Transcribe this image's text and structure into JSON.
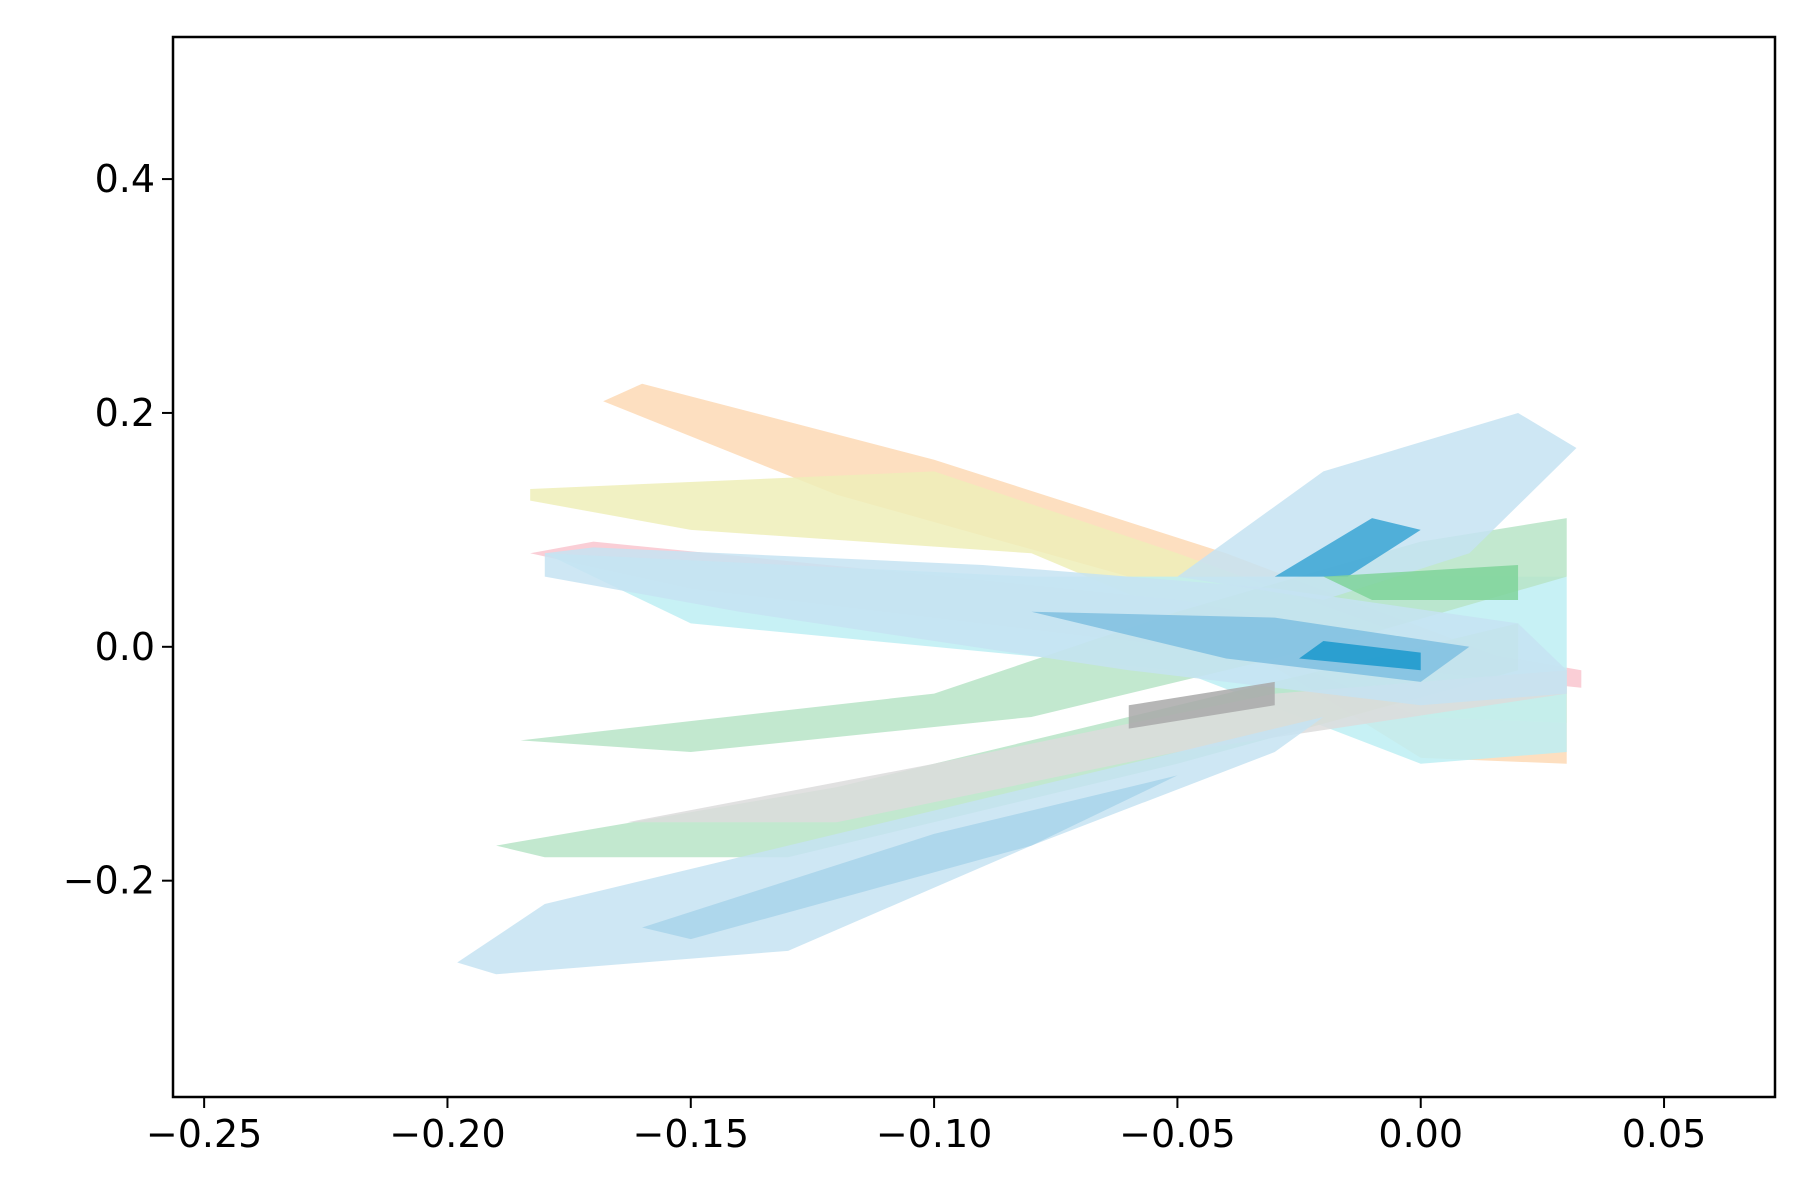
{
  "chart_data": {
    "type": "contour",
    "xlim": [
      -0.2564,
      0.0728
    ],
    "ylim": [
      -0.385,
      0.5215
    ],
    "xticks": [
      {
        "value": -0.25,
        "label": "−0.25"
      },
      {
        "value": -0.2,
        "label": "−0.20"
      },
      {
        "value": -0.15,
        "label": "−0.15"
      },
      {
        "value": -0.1,
        "label": "−0.10"
      },
      {
        "value": -0.05,
        "label": "−0.05"
      },
      {
        "value": 0,
        "label": "0.00"
      },
      {
        "value": 0.05,
        "label": "0.05"
      }
    ],
    "yticks": [
      {
        "value": -0.2,
        "label": "−0.2"
      },
      {
        "value": 0,
        "label": "0.0"
      },
      0.2,
      0.4
    ],
    "series": [
      {
        "color": "#fdd9b5",
        "x": [
          -0.168,
          -0.16,
          -0.1,
          -0.04,
          0.03,
          0.03,
          0.0,
          -0.06,
          -0.12
        ],
        "y": [
          0.21,
          0.225,
          0.16,
          0.08,
          -0.03,
          -0.1,
          -0.095,
          0.06,
          0.13
        ]
      },
      {
        "color": "#eeeeb8",
        "x": [
          -0.183,
          -0.1,
          -0.05,
          0.03,
          0.03,
          0.0,
          -0.08,
          -0.15,
          -0.183
        ],
        "y": [
          0.135,
          0.15,
          0.08,
          -0.04,
          -0.065,
          -0.06,
          0.08,
          0.1,
          0.125
        ]
      },
      {
        "color": "#f9c6cf",
        "x": [
          -0.183,
          -0.17,
          -0.05,
          0.033,
          0.033,
          -0.05,
          -0.15
        ],
        "y": [
          0.08,
          0.09,
          0.04,
          -0.02,
          -0.035,
          0.0,
          0.05
        ]
      },
      {
        "color": "#bdeef3",
        "x": [
          -0.18,
          -0.08,
          0.03,
          0.03,
          0.0,
          -0.05,
          -0.15
        ],
        "y": [
          0.08,
          0.06,
          0.06,
          -0.09,
          -0.1,
          -0.02,
          0.02
        ]
      },
      {
        "color": "#b7e4c7",
        "x": [
          -0.185,
          -0.1,
          -0.05,
          0.0,
          0.03,
          0.03,
          -0.02,
          -0.08,
          -0.15
        ],
        "y": [
          -0.08,
          -0.04,
          0.03,
          0.09,
          0.11,
          0.06,
          0.0,
          -0.06,
          -0.09
        ]
      },
      {
        "color": "#b7e4c7",
        "x": [
          -0.19,
          -0.12,
          -0.04,
          0.02,
          0.02,
          -0.05,
          -0.13,
          -0.18
        ],
        "y": [
          -0.17,
          -0.12,
          -0.04,
          0.02,
          -0.02,
          -0.1,
          -0.18,
          -0.18
        ]
      },
      {
        "color": "#dcdcdc",
        "x": [
          -0.163,
          -0.1,
          -0.03,
          0.03,
          0.03,
          -0.05,
          -0.12
        ],
        "y": [
          -0.15,
          -0.1,
          -0.04,
          -0.02,
          -0.04,
          -0.09,
          -0.15
        ]
      },
      {
        "color": "#c6e3f2",
        "x": [
          -0.198,
          -0.18,
          -0.12,
          -0.06,
          -0.02,
          -0.03,
          -0.08,
          -0.13,
          -0.19
        ],
        "y": [
          -0.27,
          -0.22,
          -0.16,
          -0.1,
          -0.06,
          -0.09,
          -0.17,
          -0.26,
          -0.28
        ]
      },
      {
        "color": "#c6e3f2",
        "x": [
          -0.18,
          -0.17,
          -0.09,
          -0.03,
          0.02,
          0.03,
          0.03,
          0.0,
          -0.06,
          -0.14,
          -0.18
        ],
        "y": [
          0.08,
          0.085,
          0.07,
          0.05,
          0.02,
          -0.02,
          -0.04,
          -0.05,
          -0.02,
          0.03,
          0.06
        ]
      },
      {
        "color": "#c6e3f2",
        "x": [
          -0.05,
          -0.02,
          0.02,
          0.032,
          0.01,
          -0.02
        ],
        "y": [
          0.06,
          0.15,
          0.2,
          0.17,
          0.08,
          0.04
        ]
      },
      {
        "color": "#a8d4ea",
        "x": [
          -0.16,
          -0.1,
          -0.05,
          -0.08,
          -0.15
        ],
        "y": [
          -0.24,
          -0.16,
          -0.11,
          -0.17,
          -0.25
        ]
      },
      {
        "color": "#7fc0e0",
        "x": [
          -0.08,
          -0.03,
          0.01,
          0.0,
          -0.04
        ],
        "y": [
          0.03,
          0.025,
          0.0,
          -0.03,
          -0.01
        ]
      },
      {
        "color": "#1a98cc",
        "x": [
          -0.02,
          0.0,
          0.0,
          -0.025
        ],
        "y": [
          0.005,
          -0.005,
          -0.02,
          -0.01
        ]
      },
      {
        "color": "#3aa5d4",
        "x": [
          -0.03,
          -0.01,
          0.0,
          -0.015
        ],
        "y": [
          0.06,
          0.11,
          0.1,
          0.06
        ]
      },
      {
        "color": "#a9a9a9",
        "x": [
          -0.06,
          -0.03,
          -0.03,
          -0.06
        ],
        "y": [
          -0.05,
          -0.03,
          -0.05,
          -0.07
        ]
      },
      {
        "color": "#7fd39a",
        "x": [
          -0.02,
          0.02,
          0.02,
          -0.01
        ],
        "y": [
          0.06,
          0.07,
          0.04,
          0.04
        ]
      }
    ]
  }
}
